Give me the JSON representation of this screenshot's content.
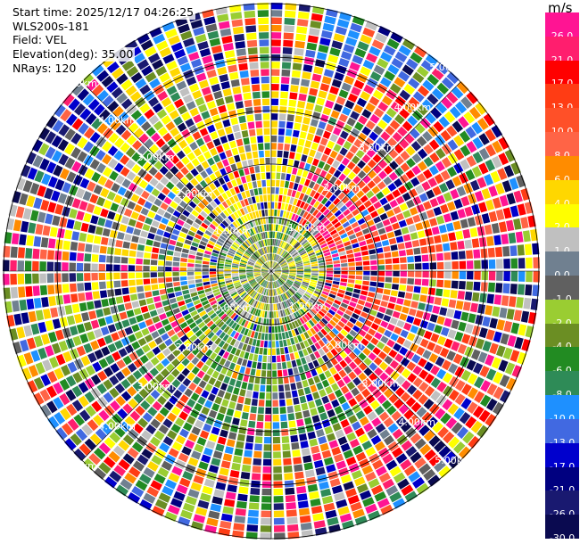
{
  "header": {
    "start_time": "Start time: 2025/12/17 04:26:25",
    "instrument": "WLS200s-181",
    "field": "Field: VEL",
    "elevation": "Elevation(deg): 35.00",
    "nrays": "NRays: 120"
  },
  "ppi": {
    "ring_labels": [
      "1.00km",
      "2.00km",
      "3.00km",
      "4.00km",
      "5.00km"
    ],
    "n_rays": 120
  },
  "colorbar": {
    "unit": "m/s",
    "labels": [
      "26.0",
      "21.0",
      "17.0",
      "13.0",
      "10.0",
      "8.0",
      "6.0",
      "4.0",
      "2.0",
      "1.0",
      "0.0",
      "-1.0",
      "-2.0",
      "-4.0",
      "-6.0",
      "-8.0",
      "-10.0",
      "-13.0",
      "-17.0",
      "-21.0",
      "-26.0",
      "-30.0"
    ],
    "colors": [
      "#ff1493",
      "#ff1e6e",
      "#ff0000",
      "#ff3c14",
      "#ff5028",
      "#ff6446",
      "#ff8c00",
      "#ffd700",
      "#ffff00",
      "#c0c0c0",
      "#708090",
      "#606060",
      "#9acd32",
      "#6b8e23",
      "#228b22",
      "#2e8b57",
      "#1e90ff",
      "#4169e1",
      "#0000cd",
      "#000080",
      "#191970",
      "#0a0a50"
    ]
  }
}
